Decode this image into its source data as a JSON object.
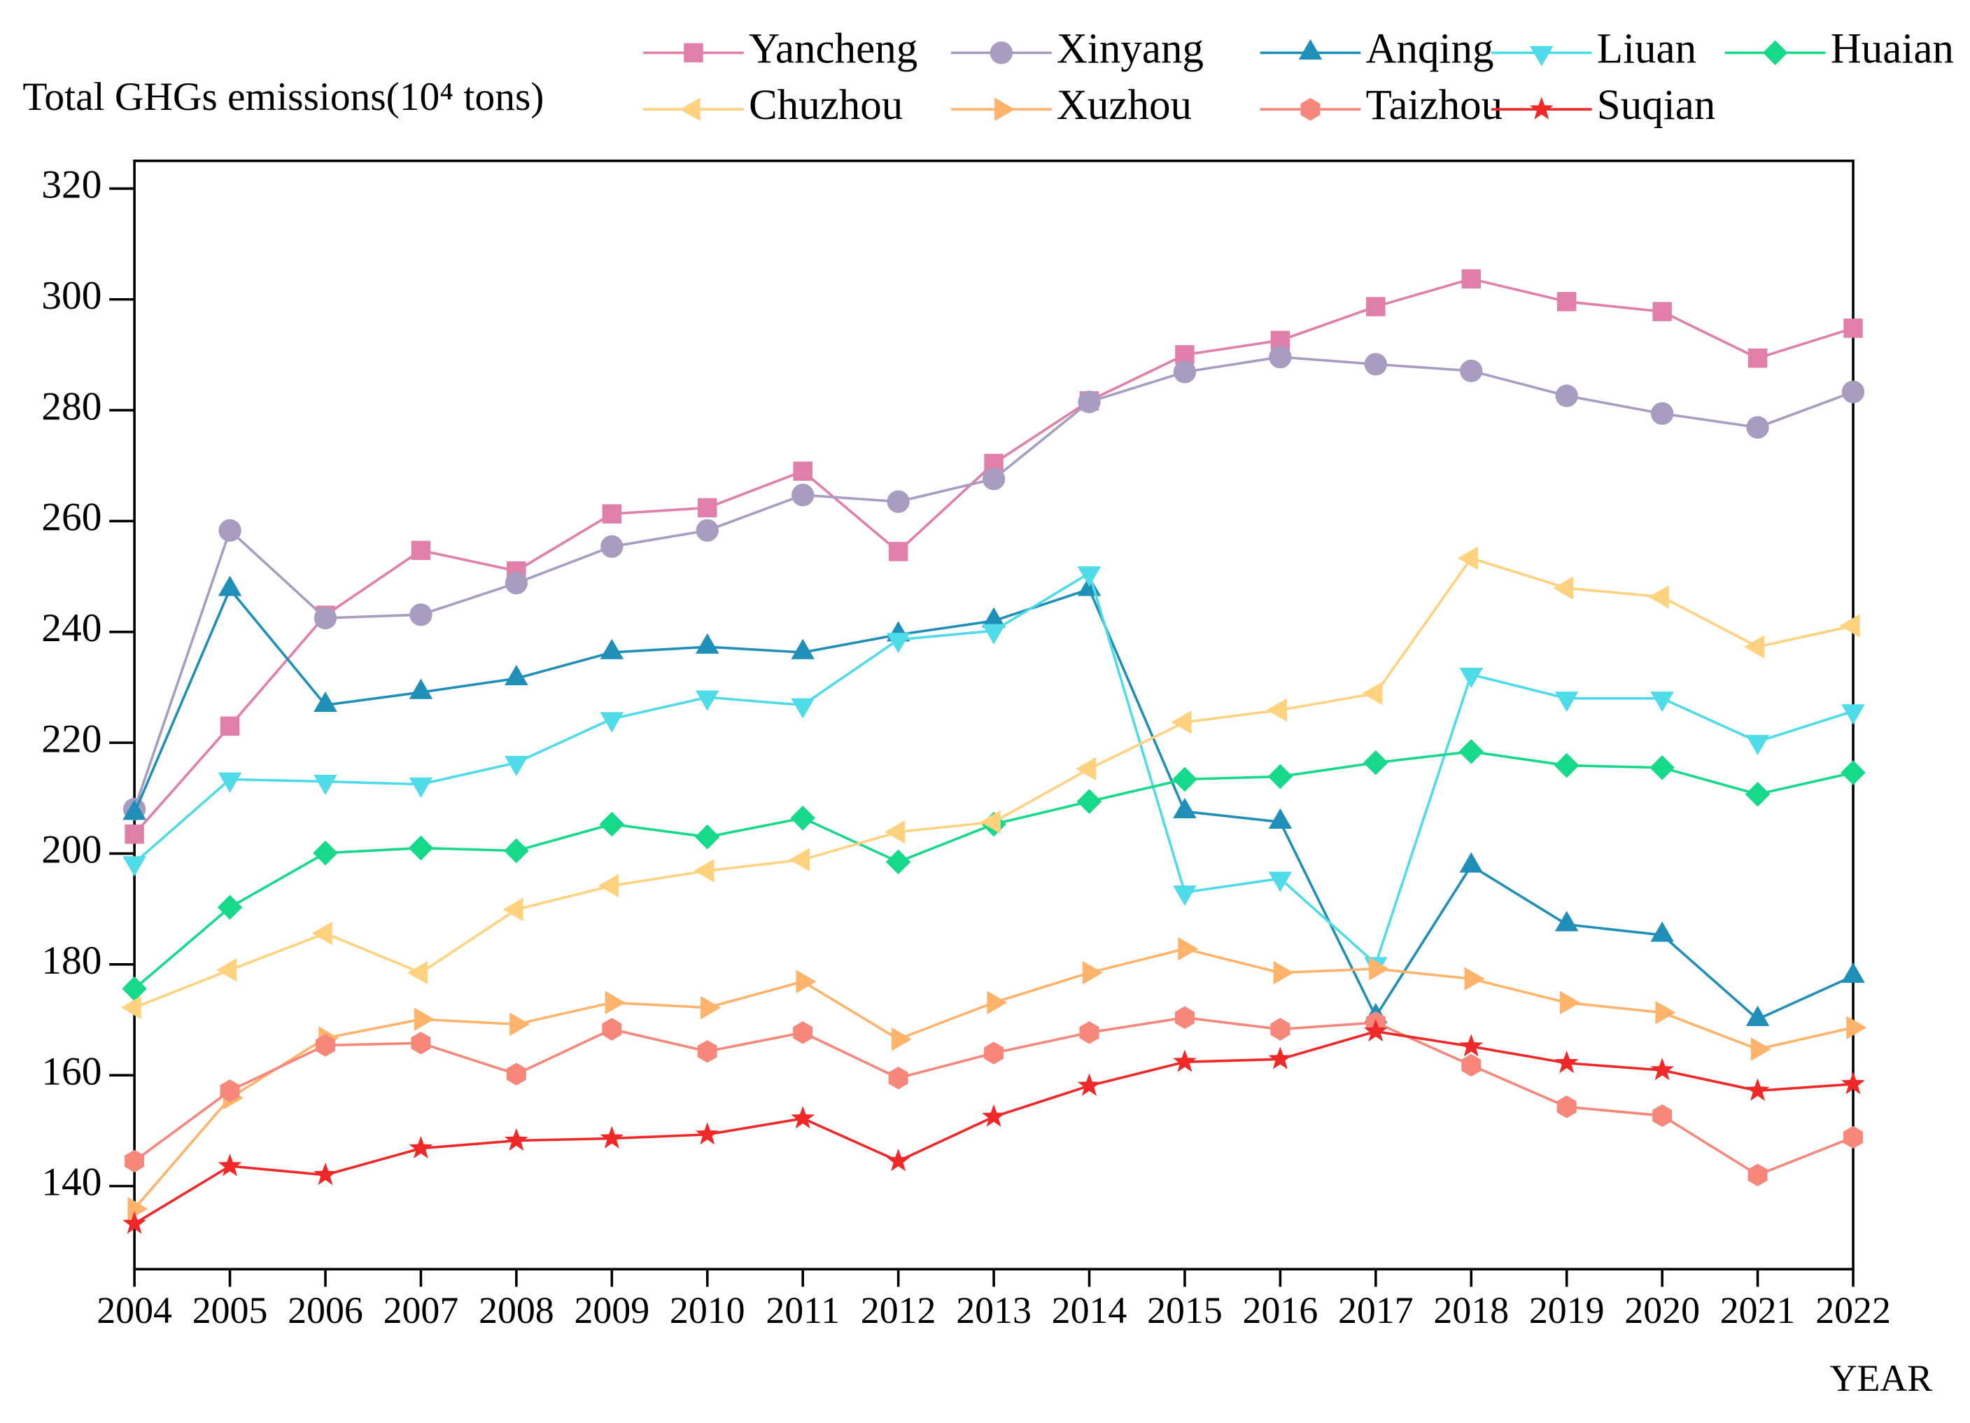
{
  "chart_data": {
    "type": "line",
    "y_label": "Total GHGs emissions(10⁴ tons)",
    "x_label": "YEAR",
    "x": [
      2004,
      2005,
      2006,
      2007,
      2008,
      2009,
      2010,
      2011,
      2012,
      2013,
      2014,
      2015,
      2016,
      2017,
      2018,
      2019,
      2020,
      2021,
      2022
    ],
    "xlim": [
      2004,
      2022
    ],
    "xticks": [
      2004,
      2005,
      2006,
      2007,
      2008,
      2009,
      2010,
      2011,
      2012,
      2013,
      2014,
      2015,
      2016,
      2017,
      2018,
      2019,
      2020,
      2021,
      2022
    ],
    "ylim": [
      125,
      325
    ],
    "yticks": [
      140,
      160,
      180,
      200,
      220,
      240,
      260,
      280,
      300,
      320
    ],
    "grid": false,
    "legend": "top",
    "series": [
      {
        "name": "Yancheng",
        "color": "#e07fa9",
        "marker": "square",
        "values": [
          203.5,
          223,
          243,
          254.7,
          251,
          261.3,
          262.4,
          269,
          254.5,
          270.4,
          281.7,
          290,
          292.6,
          298.7,
          303.7,
          299.6,
          297.8,
          289.4,
          294.8
        ]
      },
      {
        "name": "Xinyang",
        "color": "#a89cc0",
        "marker": "circle",
        "values": [
          208,
          258.3,
          242.5,
          243.1,
          248.8,
          255.4,
          258.3,
          264.7,
          263.5,
          267.6,
          281.5,
          286.9,
          289.6,
          288.3,
          287.1,
          282.6,
          279.4,
          276.9,
          283.3
        ]
      },
      {
        "name": "Anqing",
        "color": "#1f8fb8",
        "marker": "triangle-up",
        "values": [
          207.3,
          247.7,
          226.8,
          229.1,
          231.6,
          236.3,
          237.3,
          236.3,
          239.5,
          242,
          247.7,
          207.6,
          205.7,
          170.6,
          197.8,
          187.2,
          185.3,
          170.1,
          177.9
        ]
      },
      {
        "name": "Liuan",
        "color": "#4fdbe8",
        "marker": "triangle-down",
        "values": [
          198.3,
          213.4,
          213,
          212.5,
          216.4,
          224.3,
          228.2,
          226.8,
          238.6,
          240.2,
          250.6,
          193,
          195.5,
          180.1,
          232.3,
          228,
          228,
          220.2,
          225.7
        ]
      },
      {
        "name": "Huaian",
        "color": "#17d98a",
        "marker": "diamond",
        "values": [
          175.6,
          190.3,
          200.1,
          201,
          200.5,
          205.3,
          203,
          206.4,
          198.5,
          205.3,
          209.4,
          213.4,
          213.9,
          216.4,
          218.4,
          215.9,
          215.5,
          210.7,
          214.6
        ]
      },
      {
        "name": "Chuzhou",
        "color": "#ffd27f",
        "marker": "triangle-left",
        "values": [
          172.2,
          179,
          185.6,
          178.5,
          189.9,
          194.2,
          196.9,
          198.9,
          203.9,
          205.7,
          215.3,
          223.7,
          225.9,
          228.9,
          253.3,
          247.9,
          246.3,
          237.3,
          241.1
        ]
      },
      {
        "name": "Xuzhou",
        "color": "#ffb36b",
        "marker": "triangle-right",
        "values": [
          135.9,
          155.9,
          166.7,
          170.1,
          169.2,
          173.1,
          172.2,
          176.9,
          166.5,
          173.1,
          178.5,
          182.8,
          178.5,
          179.2,
          177.4,
          173.1,
          171.3,
          164.7,
          168.6
        ]
      },
      {
        "name": "Taizhou",
        "color": "#f7877a",
        "marker": "hexagon",
        "values": [
          144.5,
          157.2,
          165.4,
          165.8,
          160.2,
          168.3,
          164.3,
          167.7,
          159.5,
          164,
          167.7,
          170.4,
          168.3,
          169.5,
          161.8,
          154.3,
          152.7,
          142,
          148.8
        ]
      },
      {
        "name": "Suqian",
        "color": "#f02828",
        "marker": "star",
        "values": [
          133.2,
          143.6,
          142,
          146.8,
          148.2,
          148.6,
          149.3,
          152.2,
          144.5,
          152.5,
          158.1,
          162.4,
          162.9,
          167.9,
          165.2,
          162.2,
          160.9,
          157.2,
          158.4
        ]
      }
    ]
  }
}
